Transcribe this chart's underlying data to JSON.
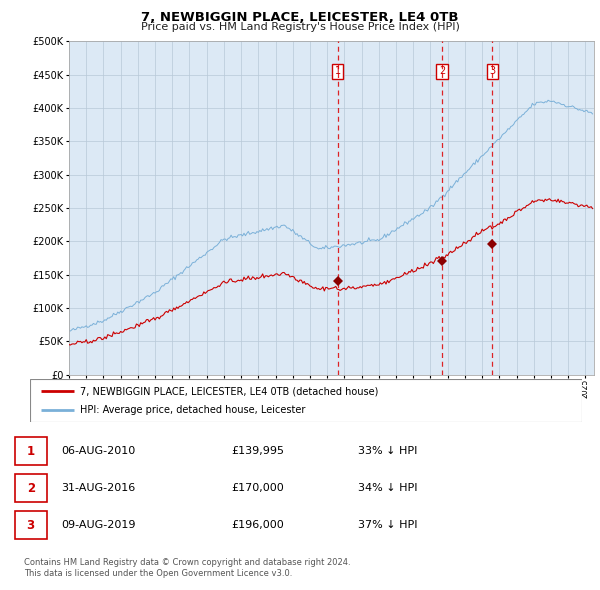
{
  "title": "7, NEWBIGGIN PLACE, LEICESTER, LE4 0TB",
  "subtitle": "Price paid vs. HM Land Registry's House Price Index (HPI)",
  "background_color": "#dce9f5",
  "plot_bg_color": "#dce9f5",
  "red_line_label": "7, NEWBIGGIN PLACE, LEICESTER, LE4 0TB (detached house)",
  "blue_line_label": "HPI: Average price, detached house, Leicester",
  "footer": "Contains HM Land Registry data © Crown copyright and database right 2024.\nThis data is licensed under the Open Government Licence v3.0.",
  "transactions": [
    {
      "num": 1,
      "date": "06-AUG-2010",
      "price": "£139,995",
      "pct": "33% ↓ HPI",
      "year": 2010.6,
      "price_val": 139995
    },
    {
      "num": 2,
      "date": "31-AUG-2016",
      "price": "£170,000",
      "pct": "34% ↓ HPI",
      "year": 2016.67,
      "price_val": 170000
    },
    {
      "num": 3,
      "date": "09-AUG-2019",
      "price": "£196,000",
      "pct": "37% ↓ HPI",
      "year": 2019.6,
      "price_val": 196000
    }
  ],
  "ylim": [
    0,
    500000
  ],
  "yticks": [
    0,
    50000,
    100000,
    150000,
    200000,
    250000,
    300000,
    350000,
    400000,
    450000,
    500000
  ],
  "xlim_start": 1995.0,
  "xlim_end": 2025.5
}
